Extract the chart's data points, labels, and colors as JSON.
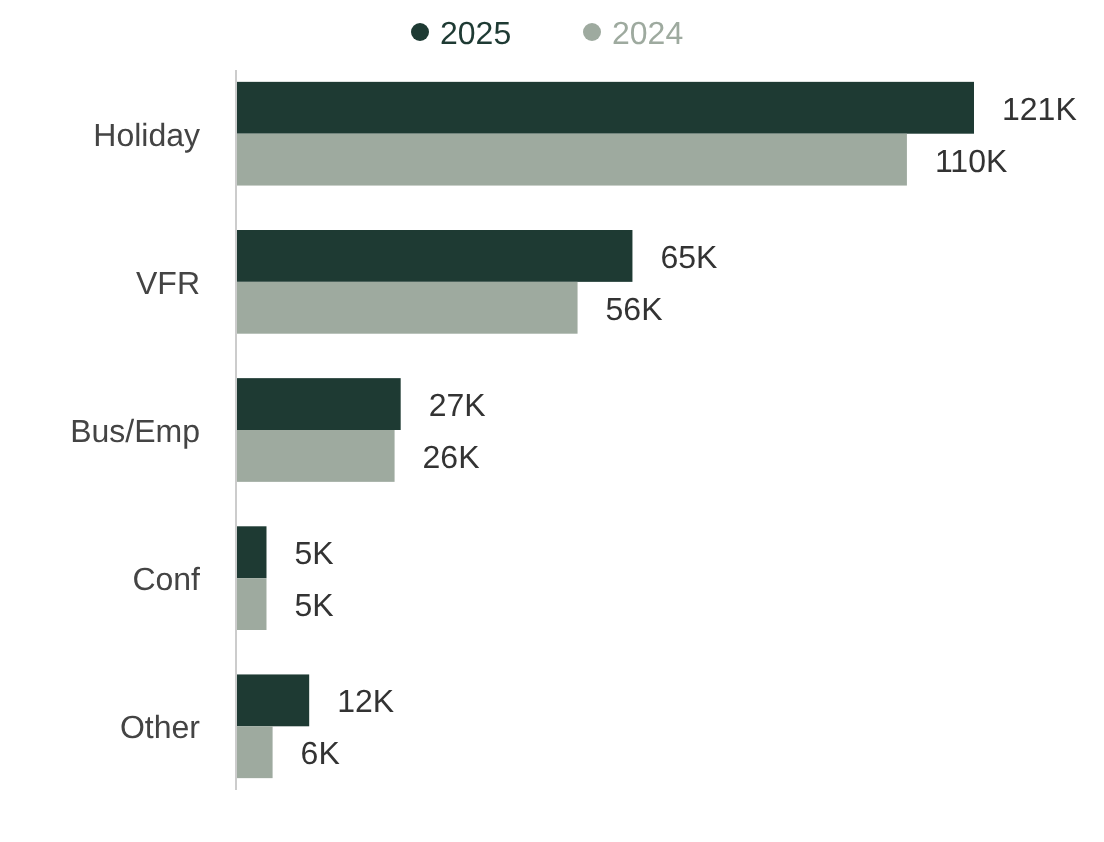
{
  "chart_data": {
    "type": "bar",
    "orientation": "horizontal",
    "categories": [
      "Holiday",
      "VFR",
      "Bus/Emp",
      "Conf",
      "Other"
    ],
    "series": [
      {
        "name": "2025",
        "color": "#1e3a33",
        "values": [
          121,
          65,
          27,
          5,
          12
        ],
        "value_labels": [
          "121K",
          "65K",
          "27K",
          "5K",
          "12K"
        ]
      },
      {
        "name": "2024",
        "color": "#9eaa9f",
        "values": [
          110,
          56,
          26,
          5,
          6
        ],
        "value_labels": [
          "110K",
          "56K",
          "26K",
          "5K",
          "6K"
        ]
      }
    ],
    "legend": "top"
  }
}
